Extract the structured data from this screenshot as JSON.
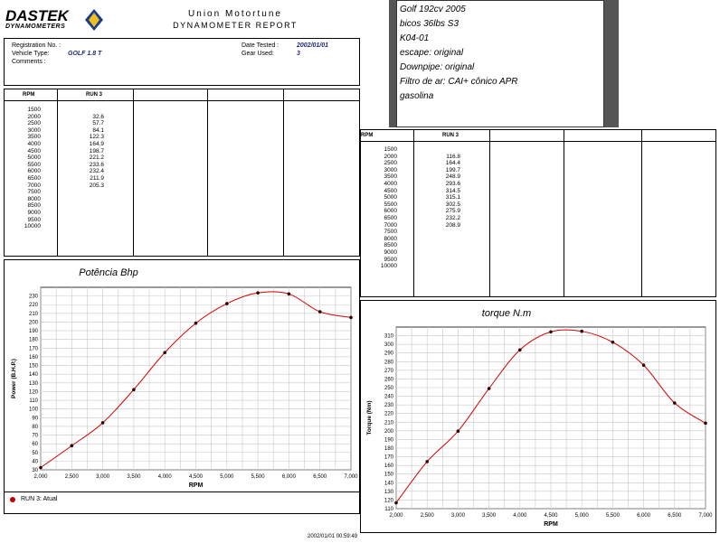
{
  "header": {
    "logo_main": "DASTEK",
    "logo_sub": "DYNAMOMETERS",
    "company": "Union Motortune",
    "report_title": "DYNAMOMETER REPORT",
    "fields": {
      "registration_label": "Registration No. :",
      "registration_value": "",
      "vehicle_label": "Vehicle Type:",
      "vehicle_value": "GOLF 1.8 T",
      "comments_label": "Comments :",
      "date_label": "Date Tested :",
      "date_value": "2002/01/01",
      "gear_label": "Gear Used:",
      "gear_value": "3"
    }
  },
  "notes": [
    "Golf 192cv 2005",
    "bicos 36lbs  S3",
    "K04-01",
    "escape: original",
    "Downpipe: original",
    "Filtro de ar: CAI+ cônico APR",
    "gasolina"
  ],
  "power_table": {
    "col1": "RPM",
    "col2": "RUN 3",
    "rpm": "1500\n2000\n2500\n3000\n3500\n4000\n4500\n5000\n5500\n6000\n6500\n7000\n7500\n8000\n8500\n9000\n9500\n10000",
    "values": "\n32.6\n57.7\n84.1\n122.3\n164.9\n198.7\n221.2\n233.6\n232.4\n211.9\n205.3"
  },
  "torque_table": {
    "col1": "RPM",
    "col2": "RUN 3",
    "rpm": "1500\n2000\n2500\n3000\n3500\n4000\n4500\n5000\n5500\n6000\n6500\n7000\n7500\n8000\n8500\n9000\n9500\n10000",
    "values": "\n116.8\n164.4\n199.7\n248.9\n293.6\n314.5\n315.1\n302.5\n275.9\n232.2\n208.9"
  },
  "legend_text": "RUN 3: Atual",
  "footer_timestamp": "2002/01/01 00:59:49",
  "chart_data": [
    {
      "type": "line",
      "title": "Potência Bhp",
      "xlabel": "RPM",
      "ylabel": "Power (B.H.P.)",
      "x": [
        2000,
        2500,
        3000,
        3500,
        4000,
        4500,
        5000,
        5500,
        6000,
        6500,
        7000
      ],
      "series": [
        {
          "name": "RUN 3: Atual",
          "values": [
            32.6,
            57.7,
            84.1,
            122.3,
            164.9,
            198.7,
            221.2,
            233.6,
            232.4,
            211.9,
            205.3
          ]
        }
      ],
      "xlim": [
        2000,
        7000
      ],
      "ylim": [
        30,
        240
      ],
      "xticks": [
        "2,000",
        "2,500",
        "3,000",
        "3,500",
        "4,000",
        "4,500",
        "5,000",
        "5,500",
        "6,000",
        "6,500",
        "7,000"
      ],
      "yticks": [
        30,
        40,
        50,
        60,
        70,
        80,
        90,
        100,
        110,
        120,
        130,
        140,
        150,
        160,
        170,
        180,
        190,
        200,
        210,
        220,
        230
      ],
      "grid": true,
      "line_color": "#d40000"
    },
    {
      "type": "line",
      "title": "torque  N.m",
      "xlabel": "RPM",
      "ylabel": "Torque (Nm)",
      "x": [
        2000,
        2500,
        3000,
        3500,
        4000,
        4500,
        5000,
        5500,
        6000,
        6500,
        7000
      ],
      "series": [
        {
          "name": "RUN 3: Atual",
          "values": [
            116.8,
            164.4,
            199.7,
            248.9,
            293.6,
            314.5,
            315.1,
            302.5,
            275.9,
            232.2,
            208.9
          ]
        }
      ],
      "xlim": [
        2000,
        7000
      ],
      "ylim": [
        110,
        320
      ],
      "xticks": [
        "2,000",
        "2,500",
        "3,000",
        "3,500",
        "4,000",
        "4,500",
        "5,000",
        "5,500",
        "6,000",
        "6,500",
        "7,000"
      ],
      "yticks": [
        110,
        120,
        130,
        140,
        150,
        160,
        170,
        180,
        190,
        200,
        210,
        220,
        230,
        240,
        250,
        260,
        270,
        280,
        290,
        300,
        310
      ],
      "grid": true,
      "line_color": "#d40000"
    }
  ]
}
